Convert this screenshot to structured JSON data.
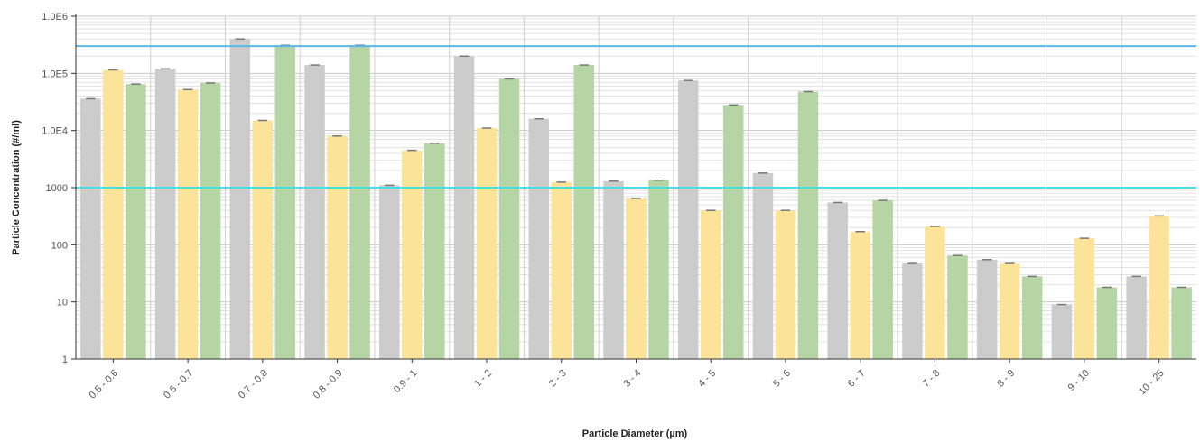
{
  "chart_data": {
    "type": "bar",
    "title": "",
    "xlabel": "Particle Diameter (µm)",
    "ylabel": "Particle Concentration (#/ml)",
    "yscale": "log",
    "ylim": [
      1,
      1000000
    ],
    "ytick_values": [
      1,
      10,
      100,
      1000,
      10000,
      100000,
      1000000
    ],
    "ytick_labels": [
      "1",
      "10",
      "100",
      "1000",
      "1.0E4",
      "1.0E5",
      "1.0E6"
    ],
    "grid": true,
    "legend": "none",
    "categories": [
      "0.5 - 0.6",
      "0.6 - 0.7",
      "0.7 - 0.8",
      "0.8 - 0.9",
      "0.9 - 1",
      "1 - 2",
      "2 - 3",
      "3 - 4",
      "4 - 5",
      "5 - 6",
      "6 - 7",
      "7 - 8",
      "8 - 9",
      "9 - 10",
      "10 - 25"
    ],
    "series": [
      {
        "color": "#cccccc",
        "values": [
          36000,
          120000,
          400000,
          140000,
          1100,
          200000,
          16000,
          1300,
          75000,
          1800,
          550,
          47,
          55,
          9,
          28
        ]
      },
      {
        "color": "#fce39a",
        "values": [
          115000,
          52000,
          15000,
          8000,
          4500,
          11000,
          1250,
          650,
          400,
          400,
          170,
          210,
          47,
          130,
          320
        ]
      },
      {
        "color": "#b5d5a5",
        "values": [
          65000,
          68000,
          310000,
          310000,
          6000,
          80000,
          140000,
          1350,
          28000,
          48000,
          600,
          65,
          28,
          18,
          18
        ]
      }
    ],
    "reference_lines": [
      {
        "y": 300000,
        "color": "#5bb8e8"
      },
      {
        "y": 1000,
        "color": "#3fe0e8"
      }
    ]
  }
}
